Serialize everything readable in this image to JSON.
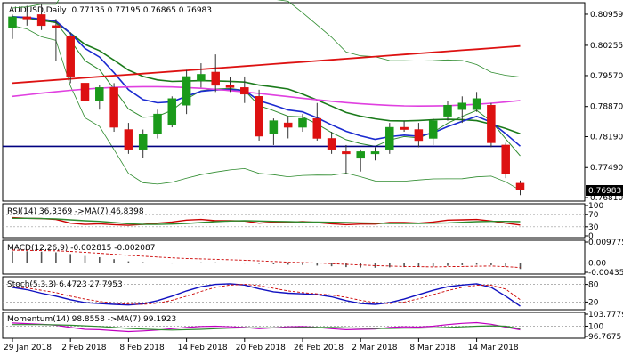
{
  "chart_data": {
    "type": "candlestick",
    "symbol_label": "AUDUSD,Daily",
    "ohlc_label": "0.77135 0.77195 0.76865 0.76983",
    "last_price_label": "0.76983",
    "x_ticks": [
      "29 Jan 2018",
      "2 Feb 2018",
      "8 Feb 2018",
      "14 Feb 2018",
      "20 Feb 2018",
      "26 Feb 2018",
      "2 Mar 2018",
      "8 Mar 2018",
      "14 Mar 2018"
    ],
    "y_ticks": [
      "0.80959",
      "0.80255",
      "0.79570",
      "0.78870",
      "0.78190",
      "0.77490",
      "0.76810"
    ],
    "ylim": [
      0.7675,
      0.812
    ],
    "candles": [
      {
        "o": 0.8065,
        "h": 0.8095,
        "l": 0.804,
        "c": 0.809
      },
      {
        "o": 0.809,
        "h": 0.8115,
        "l": 0.807,
        "c": 0.8085
      },
      {
        "o": 0.8095,
        "h": 0.812,
        "l": 0.806,
        "c": 0.807
      },
      {
        "o": 0.807,
        "h": 0.8085,
        "l": 0.799,
        "c": 0.8065
      },
      {
        "o": 0.8045,
        "h": 0.8055,
        "l": 0.794,
        "c": 0.7955
      },
      {
        "o": 0.794,
        "h": 0.796,
        "l": 0.789,
        "c": 0.79
      },
      {
        "o": 0.79,
        "h": 0.7935,
        "l": 0.788,
        "c": 0.793
      },
      {
        "o": 0.793,
        "h": 0.794,
        "l": 0.783,
        "c": 0.784
      },
      {
        "o": 0.7835,
        "h": 0.785,
        "l": 0.778,
        "c": 0.779
      },
      {
        "o": 0.779,
        "h": 0.7835,
        "l": 0.777,
        "c": 0.7825
      },
      {
        "o": 0.7825,
        "h": 0.788,
        "l": 0.7815,
        "c": 0.787
      },
      {
        "o": 0.7845,
        "h": 0.791,
        "l": 0.784,
        "c": 0.7905
      },
      {
        "o": 0.789,
        "h": 0.797,
        "l": 0.787,
        "c": 0.7955
      },
      {
        "o": 0.7945,
        "h": 0.7985,
        "l": 0.793,
        "c": 0.796
      },
      {
        "o": 0.7965,
        "h": 0.8005,
        "l": 0.792,
        "c": 0.7935
      },
      {
        "o": 0.7935,
        "h": 0.7955,
        "l": 0.792,
        "c": 0.793
      },
      {
        "o": 0.793,
        "h": 0.7955,
        "l": 0.7895,
        "c": 0.7915
      },
      {
        "o": 0.791,
        "h": 0.7925,
        "l": 0.781,
        "c": 0.782
      },
      {
        "o": 0.7825,
        "h": 0.786,
        "l": 0.78,
        "c": 0.7855
      },
      {
        "o": 0.785,
        "h": 0.7865,
        "l": 0.7815,
        "c": 0.784
      },
      {
        "o": 0.784,
        "h": 0.787,
        "l": 0.783,
        "c": 0.786
      },
      {
        "o": 0.786,
        "h": 0.7895,
        "l": 0.781,
        "c": 0.7815
      },
      {
        "o": 0.7815,
        "h": 0.783,
        "l": 0.778,
        "c": 0.779
      },
      {
        "o": 0.7785,
        "h": 0.78,
        "l": 0.7735,
        "c": 0.778
      },
      {
        "o": 0.777,
        "h": 0.779,
        "l": 0.774,
        "c": 0.7785
      },
      {
        "o": 0.778,
        "h": 0.7795,
        "l": 0.7765,
        "c": 0.7785
      },
      {
        "o": 0.779,
        "h": 0.785,
        "l": 0.778,
        "c": 0.784
      },
      {
        "o": 0.784,
        "h": 0.7855,
        "l": 0.783,
        "c": 0.7835
      },
      {
        "o": 0.7835,
        "h": 0.785,
        "l": 0.7795,
        "c": 0.781
      },
      {
        "o": 0.7815,
        "h": 0.786,
        "l": 0.78,
        "c": 0.7855
      },
      {
        "o": 0.7865,
        "h": 0.79,
        "l": 0.7855,
        "c": 0.789
      },
      {
        "o": 0.788,
        "h": 0.791,
        "l": 0.785,
        "c": 0.7895
      },
      {
        "o": 0.788,
        "h": 0.792,
        "l": 0.7875,
        "c": 0.7905
      },
      {
        "o": 0.789,
        "h": 0.7895,
        "l": 0.7795,
        "c": 0.7805
      },
      {
        "o": 0.78,
        "h": 0.7805,
        "l": 0.7725,
        "c": 0.7735
      },
      {
        "o": 0.77135,
        "h": 0.77195,
        "l": 0.76865,
        "c": 0.76983
      }
    ],
    "panels": [
      {
        "name": "rsi",
        "label": "RSI(14) 36.3369 ->MA(7) 46.8398",
        "ticks": [
          "100",
          "70",
          "30",
          "0"
        ],
        "ylim": [
          0,
          100
        ],
        "series": [
          {
            "name": "RSI(14)",
            "color": "#cc0000",
            "values": [
              60,
              58,
              57,
              54,
              42,
              38,
              40,
              37,
              35,
              38,
              42,
              46,
              52,
              54,
              50,
              50,
              49,
              42,
              46,
              45,
              47,
              44,
              40,
              37,
              39,
              39,
              44,
              44,
              42,
              46,
              52,
              53,
              54,
              49,
              42,
              36
            ]
          },
          {
            "name": "MA(7)",
            "color": "#2e8b2e",
            "values": [
              58,
              58,
              57,
              56,
              53,
              50,
              48,
              44,
              40,
              38,
              38,
              39,
              41,
              44,
              47,
              49,
              50,
              49,
              48,
              47,
              46,
              46,
              45,
              44,
              43,
              42,
              41,
              41,
              41,
              42,
              43,
              45,
              47,
              48,
              48,
              47
            ]
          }
        ]
      },
      {
        "name": "macd",
        "label": "MACD(12,26,9) -0.002815 -0.002087",
        "ticks": [
          "0.009775",
          "0.00",
          "-0.004356"
        ],
        "ylim": [
          -0.004356,
          0.009775
        ],
        "histogram": [
          0.0055,
          0.0055,
          0.0053,
          0.005,
          0.0042,
          0.0033,
          0.0027,
          0.0018,
          0.0008,
          0.0004,
          0.0002,
          0.0001,
          0.0002,
          0.0003,
          0.0003,
          0.0002,
          0.0001,
          -0.0004,
          -0.0006,
          -0.0008,
          -0.0009,
          -0.0012,
          -0.0015,
          -0.0019,
          -0.0021,
          -0.0022,
          -0.002,
          -0.0019,
          -0.0019,
          -0.0017,
          -0.0013,
          -0.001,
          -0.0008,
          -0.001,
          -0.0017,
          -0.0028
        ],
        "signal": [
          0.006,
          0.0059,
          0.0058,
          0.0057,
          0.0054,
          0.005,
          0.0046,
          0.0041,
          0.0036,
          0.0032,
          0.0028,
          0.0024,
          0.0021,
          0.0019,
          0.0017,
          0.0015,
          0.0013,
          0.001,
          0.0007,
          0.0004,
          0.0002,
          0.0,
          -0.0003,
          -0.0006,
          -0.0009,
          -0.0012,
          -0.0014,
          -0.0016,
          -0.0017,
          -0.0018,
          -0.0017,
          -0.0016,
          -0.0015,
          -0.0014,
          -0.0017,
          -0.0021
        ]
      },
      {
        "name": "stoch",
        "label": "Stoch(5,3,3) 6.4723 27.7953",
        "ticks": [
          "80",
          "20"
        ],
        "ylim": [
          0,
          100
        ],
        "series": [
          {
            "name": "%K",
            "color": "#1010c0",
            "values": [
              70,
              62,
              50,
              40,
              28,
              18,
              15,
              12,
              10,
              14,
              25,
              40,
              58,
              72,
              80,
              82,
              78,
              65,
              55,
              50,
              48,
              45,
              38,
              25,
              15,
              12,
              18,
              30,
              45,
              60,
              72,
              78,
              82,
              70,
              40,
              6
            ]
          },
          {
            "name": "%D",
            "color": "#cc0000",
            "values": [
              72,
              68,
              60,
              52,
              40,
              30,
              22,
              16,
              13,
              12,
              16,
              26,
              40,
              56,
              70,
              78,
              80,
              76,
              67,
              58,
              52,
              48,
              44,
              36,
              26,
              18,
              15,
              20,
              31,
              45,
              59,
              70,
              77,
              77,
              64,
              28
            ]
          }
        ]
      },
      {
        "name": "momentum",
        "label": "Momentum(14) 98.8558 ->MA(7) 99.1923",
        "ticks": [
          "103.7779",
          "100",
          "96.7675"
        ],
        "ylim": [
          96.7675,
          103.7779
        ],
        "series": [
          {
            "name": "Momentum(14)",
            "color": "#c000c0",
            "values": [
              101.0,
              100.8,
              100.6,
              100.3,
              99.6,
              99.0,
              98.9,
              98.6,
              98.3,
              98.5,
              98.8,
              99.2,
              99.6,
              99.9,
              100.0,
              99.8,
              99.6,
              99.2,
              99.5,
              99.8,
              99.9,
              99.6,
              99.2,
              98.9,
              99.0,
              99.1,
              99.6,
              99.8,
              99.7,
              100.0,
              100.5,
              100.9,
              101.1,
              100.6,
              99.7,
              98.86
            ]
          },
          {
            "name": "MA(7)",
            "color": "#2e8b2e",
            "values": [
              100.5,
              100.5,
              100.5,
              100.4,
              100.3,
              100.1,
              99.9,
              99.6,
              99.3,
              99.1,
              98.9,
              98.8,
              98.9,
              99.0,
              99.2,
              99.4,
              99.5,
              99.5,
              99.5,
              99.5,
              99.6,
              99.6,
              99.6,
              99.5,
              99.4,
              99.3,
              99.3,
              99.4,
              99.4,
              99.5,
              99.6,
              99.8,
              100.0,
              100.1,
              100.0,
              99.19
            ]
          }
        ]
      }
    ]
  }
}
